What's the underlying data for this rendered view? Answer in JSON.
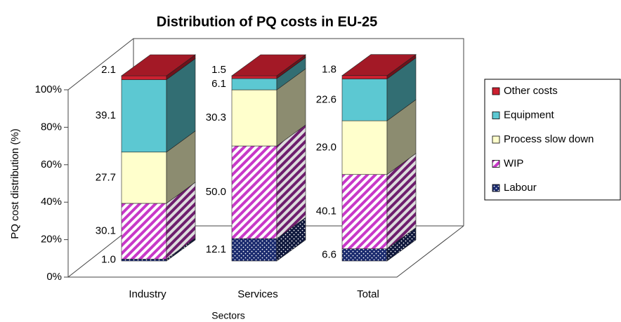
{
  "chart_data": {
    "type": "bar3d_stacked",
    "title": "Distribution of PQ costs in EU-25",
    "xlabel": "Sectors",
    "ylabel": "PQ cost distribution (%)",
    "categories": [
      "Industry",
      "Services",
      "Total"
    ],
    "ylim": [
      0,
      100
    ],
    "yticks": [
      {
        "value": 0,
        "label": "0%"
      },
      {
        "value": 20,
        "label": "20%"
      },
      {
        "value": 40,
        "label": "40%"
      },
      {
        "value": 60,
        "label": "60%"
      },
      {
        "value": 80,
        "label": "80%"
      },
      {
        "value": 100,
        "label": "100%"
      }
    ],
    "grid": false,
    "legend": "right",
    "series": [
      {
        "name": "Labour",
        "color": "#1a2a6e",
        "pattern": "dots",
        "values": [
          1.0,
          12.1,
          6.6
        ],
        "value_labels": [
          "1.0",
          "12.1",
          "6.6"
        ]
      },
      {
        "name": "WIP",
        "color": "#c838c8",
        "pattern": "hatch",
        "values": [
          30.1,
          50.0,
          40.1
        ],
        "value_labels": [
          "30.1",
          "50.0",
          "40.1"
        ]
      },
      {
        "name": "Process slow down",
        "color": "#ffffcc",
        "pattern": "solid",
        "values": [
          27.7,
          30.3,
          29.0
        ],
        "value_labels": [
          "27.7",
          "30.3",
          "29.0"
        ]
      },
      {
        "name": "Equipment",
        "color": "#5cc8d2",
        "pattern": "solid",
        "values": [
          39.1,
          6.1,
          22.6
        ],
        "value_labels": [
          "39.1",
          "6.1",
          "22.6"
        ]
      },
      {
        "name": "Other costs",
        "color": "#cc2030",
        "pattern": "solid",
        "values": [
          2.1,
          1.5,
          1.8
        ],
        "value_labels": [
          "2.1",
          "1.5",
          "1.8"
        ]
      }
    ]
  }
}
